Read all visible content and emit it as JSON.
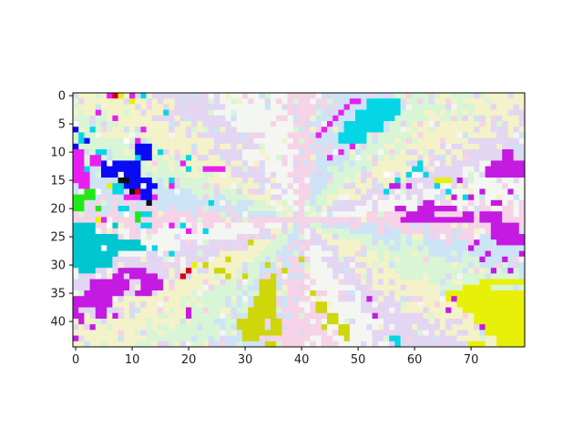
{
  "chart_data": {
    "type": "heatmap",
    "title": "",
    "xlabel": "",
    "ylabel": "",
    "grid": false,
    "legend": "none",
    "colorbar": false,
    "n_cols": 80,
    "n_rows": 45,
    "xlim": [
      -0.5,
      79.5
    ],
    "ylim": [
      44.5,
      -0.5
    ],
    "x_ticks": [
      0,
      10,
      20,
      30,
      40,
      50,
      60,
      70
    ],
    "y_ticks": [
      0,
      5,
      10,
      15,
      20,
      25,
      30,
      35,
      40
    ],
    "background_pattern": "pale pastel rays radiating from center near column 40, row 22",
    "palette": {
      "pastel_pink": "#f6d3e6",
      "pastel_blue": "#cde3f6",
      "pastel_green": "#d8f5d6",
      "pastel_yellow": "#f3f2c8",
      "pastel_lilac": "#e2d6f2",
      "pastel_white": "#f4f6f2",
      "magenta": "#e81ff0",
      "purple": "#c41ae2",
      "cyan": "#05d6e6",
      "teal": "#00c7cf",
      "blue": "#0a0af5",
      "yellow": "#e8f007",
      "olive_yellow": "#cfd60a",
      "green": "#22e81a",
      "red": "#d4001a",
      "black": "#101010",
      "white": "#ffffff"
    },
    "regions": [
      {
        "name": "top-center cyan patch",
        "color": "cyan",
        "rects": [
          [
            52,
            1,
            6,
            3
          ],
          [
            50,
            3,
            7,
            2
          ],
          [
            48,
            5,
            7,
            2
          ],
          [
            47,
            7,
            5,
            2
          ],
          [
            55,
            1,
            3,
            1
          ]
        ]
      },
      {
        "name": "top-center magenta edge",
        "color": "magenta",
        "rects": [
          [
            49,
            1,
            2,
            1
          ],
          [
            48,
            2,
            1,
            1
          ],
          [
            47,
            3,
            1,
            1
          ],
          [
            46,
            4,
            1,
            1
          ],
          [
            45,
            5,
            1,
            1
          ],
          [
            44,
            6,
            1,
            1
          ],
          [
            43,
            7,
            1,
            1
          ],
          [
            49,
            9,
            1,
            1
          ],
          [
            47,
            10,
            1,
            1
          ],
          [
            45,
            11,
            1,
            1
          ]
        ]
      },
      {
        "name": "top-left blue block",
        "color": "blue",
        "rects": [
          [
            5,
            12,
            7,
            3
          ],
          [
            9,
            15,
            5,
            2
          ],
          [
            11,
            9,
            3,
            3
          ],
          [
            0,
            5,
            1,
            2
          ],
          [
            0,
            9,
            1,
            1
          ],
          [
            2,
            8,
            1,
            1
          ],
          [
            12,
            17,
            2,
            2
          ],
          [
            14,
            16,
            1,
            1
          ]
        ]
      },
      {
        "name": "top-left black pixels",
        "color": "black",
        "rects": [
          [
            8,
            15,
            2,
            1
          ],
          [
            10,
            17,
            1,
            1
          ],
          [
            13,
            19,
            1,
            1
          ]
        ]
      },
      {
        "name": "top-left magenta",
        "color": "magenta",
        "rects": [
          [
            0,
            10,
            2,
            6
          ],
          [
            1,
            14,
            2,
            3
          ],
          [
            3,
            11,
            2,
            2
          ],
          [
            6,
            0,
            1,
            1
          ],
          [
            10,
            0,
            1,
            1
          ],
          [
            4,
            3,
            1,
            1
          ],
          [
            7,
            4,
            1,
            1
          ],
          [
            12,
            6,
            1,
            1
          ],
          [
            11,
            8,
            1,
            1
          ],
          [
            19,
            12,
            1,
            1
          ],
          [
            23,
            13,
            4,
            1
          ],
          [
            9,
            18,
            3,
            1
          ],
          [
            14,
            18,
            1,
            1
          ],
          [
            5,
            22,
            1,
            1
          ],
          [
            17,
            23,
            1,
            1
          ],
          [
            20,
            24,
            1,
            1
          ],
          [
            3,
            26,
            2,
            1
          ],
          [
            17,
            16,
            1,
            1
          ]
        ]
      },
      {
        "name": "top-left cyan",
        "color": "cyan",
        "rects": [
          [
            1,
            7,
            1,
            2
          ],
          [
            3,
            6,
            1,
            1
          ],
          [
            4,
            10,
            2,
            1
          ],
          [
            2,
            13,
            1,
            1
          ],
          [
            7,
            16,
            2,
            2
          ],
          [
            8,
            20,
            2,
            1
          ],
          [
            12,
            21,
            2,
            1
          ],
          [
            12,
            23,
            2,
            1
          ],
          [
            17,
            15,
            1,
            1
          ],
          [
            20,
            13,
            1,
            1
          ],
          [
            24,
            19,
            1,
            1
          ],
          [
            19,
            23,
            1,
            1
          ],
          [
            23,
            24,
            1,
            1
          ],
          [
            17,
            28,
            1,
            1
          ],
          [
            14,
            27,
            1,
            1
          ],
          [
            10,
            26,
            1,
            1
          ],
          [
            12,
            0,
            1,
            1
          ],
          [
            16,
            3,
            1,
            1
          ],
          [
            15,
            10,
            1,
            1
          ],
          [
            20,
            11,
            1,
            1
          ],
          [
            11,
            11,
            1,
            1
          ]
        ]
      },
      {
        "name": "left green",
        "color": "green",
        "rects": [
          [
            0,
            18,
            2,
            3
          ],
          [
            2,
            17,
            2,
            2
          ],
          [
            4,
            20,
            1,
            1
          ],
          [
            11,
            21,
            1,
            2
          ]
        ]
      },
      {
        "name": "left red / yellow specks",
        "color": "red",
        "rects": [
          [
            7,
            0,
            1,
            1
          ],
          [
            11,
            17,
            1,
            1
          ],
          [
            19,
            32,
            1,
            1
          ],
          [
            20,
            31,
            1,
            1
          ]
        ]
      },
      {
        "name": "left yellow specks",
        "color": "yellow",
        "rects": [
          [
            8,
            0,
            1,
            1
          ],
          [
            10,
            1,
            1,
            1
          ],
          [
            6,
            16,
            1,
            1
          ],
          [
            4,
            22,
            1,
            1
          ],
          [
            21,
            30,
            1,
            1
          ]
        ]
      },
      {
        "name": "left teal slab",
        "color": "teal",
        "rects": [
          [
            0,
            23,
            4,
            6
          ],
          [
            4,
            25,
            4,
            4
          ],
          [
            0,
            29,
            7,
            2
          ],
          [
            1,
            31,
            3,
            1
          ],
          [
            8,
            26,
            4,
            2
          ],
          [
            11,
            27,
            2,
            1
          ],
          [
            6,
            23,
            2,
            1
          ]
        ]
      },
      {
        "name": "bottom-left purple",
        "color": "purple",
        "rects": [
          [
            8,
            31,
            5,
            1
          ],
          [
            7,
            32,
            2,
            2
          ],
          [
            10,
            32,
            5,
            1
          ],
          [
            3,
            33,
            7,
            2
          ],
          [
            2,
            35,
            7,
            1
          ],
          [
            1,
            36,
            6,
            2
          ],
          [
            4,
            38,
            2,
            2
          ],
          [
            12,
            33,
            4,
            2
          ],
          [
            11,
            35,
            3,
            1
          ],
          [
            0,
            36,
            1,
            3
          ],
          [
            0,
            39,
            2,
            1
          ],
          [
            1,
            40,
            1,
            1
          ],
          [
            3,
            41,
            1,
            1
          ],
          [
            0,
            43,
            1,
            1
          ],
          [
            8,
            34,
            1,
            1
          ],
          [
            15,
            33,
            1,
            1
          ],
          [
            20,
            38,
            1,
            1
          ],
          [
            7,
            39,
            1,
            1
          ]
        ]
      },
      {
        "name": "bottom yellow cluster",
        "color": "olive_yellow",
        "rects": [
          [
            33,
            33,
            3,
            7
          ],
          [
            32,
            36,
            2,
            3
          ],
          [
            31,
            38,
            3,
            4
          ],
          [
            29,
            40,
            3,
            2
          ],
          [
            30,
            42,
            3,
            2
          ],
          [
            33,
            42,
            4,
            1
          ],
          [
            34,
            44,
            2,
            1
          ],
          [
            35,
            40,
            2,
            2
          ],
          [
            25,
            31,
            2,
            1
          ],
          [
            27,
            29,
            1,
            1
          ],
          [
            23,
            30,
            1,
            1
          ],
          [
            27,
            32,
            1,
            1
          ],
          [
            30,
            32,
            1,
            1
          ],
          [
            34,
            30,
            1,
            1
          ],
          [
            35,
            32,
            1,
            1
          ],
          [
            31,
            26,
            1,
            1
          ],
          [
            37,
            31,
            1,
            1
          ],
          [
            43,
            37,
            2,
            2
          ],
          [
            45,
            39,
            2,
            2
          ],
          [
            47,
            41,
            2,
            2
          ],
          [
            48,
            43,
            1,
            1
          ],
          [
            42,
            35,
            1,
            1
          ],
          [
            40,
            29,
            1,
            1
          ],
          [
            44,
            41,
            1,
            1
          ]
        ]
      },
      {
        "name": "right purple band",
        "color": "purple",
        "rects": [
          [
            74,
            12,
            6,
            3
          ],
          [
            73,
            13,
            2,
            2
          ],
          [
            76,
            10,
            2,
            2
          ],
          [
            59,
            21,
            5,
            2
          ],
          [
            61,
            20,
            5,
            1
          ],
          [
            63,
            22,
            6,
            1
          ],
          [
            66,
            20,
            2,
            1
          ],
          [
            69,
            21,
            2,
            2
          ],
          [
            72,
            21,
            4,
            2
          ],
          [
            74,
            23,
            5,
            3
          ],
          [
            75,
            25,
            5,
            2
          ],
          [
            62,
            19,
            2,
            1
          ],
          [
            57,
            20,
            2,
            1
          ],
          [
            58,
            22,
            1,
            1
          ],
          [
            67,
            18,
            1,
            1
          ],
          [
            70,
            18,
            1,
            1
          ],
          [
            72,
            17,
            1,
            1
          ],
          [
            68,
            15,
            1,
            1
          ],
          [
            59,
            16,
            1,
            1
          ],
          [
            56,
            16,
            2,
            1
          ],
          [
            74,
            19,
            2,
            1
          ],
          [
            77,
            17,
            1,
            1
          ],
          [
            75,
            21,
            1,
            1
          ],
          [
            71,
            26,
            1,
            1
          ],
          [
            72,
            29,
            1,
            1
          ],
          [
            76,
            29,
            1,
            1
          ],
          [
            77,
            31,
            1,
            1
          ],
          [
            79,
            28,
            1,
            1
          ],
          [
            74,
            31,
            1,
            1
          ],
          [
            70,
            27,
            1,
            1
          ],
          [
            73,
            28,
            1,
            1
          ]
        ]
      },
      {
        "name": "right cyan specks",
        "color": "cyan",
        "rects": [
          [
            60,
            13,
            2,
            1
          ],
          [
            59,
            14,
            1,
            1
          ],
          [
            62,
            14,
            1,
            1
          ],
          [
            61,
            12,
            1,
            1
          ],
          [
            57,
            15,
            1,
            1
          ],
          [
            66,
            17,
            1,
            1
          ],
          [
            69,
            18,
            1,
            1
          ],
          [
            55,
            17,
            1,
            1
          ],
          [
            64,
            16,
            1,
            1
          ],
          [
            56,
            43,
            2,
            1
          ],
          [
            57,
            44,
            1,
            1
          ]
        ]
      },
      {
        "name": "right yellow",
        "color": "yellow",
        "rects": [
          [
            66,
            35,
            14,
            2
          ],
          [
            69,
            37,
            11,
            2
          ],
          [
            71,
            39,
            9,
            2
          ],
          [
            73,
            41,
            7,
            2
          ],
          [
            75,
            43,
            5,
            2
          ],
          [
            69,
            34,
            5,
            1
          ],
          [
            72,
            33,
            8,
            1
          ],
          [
            68,
            37,
            1,
            1
          ],
          [
            70,
            44,
            3,
            1
          ],
          [
            64,
            15,
            3,
            1
          ]
        ]
      },
      {
        "name": "bottom-right purple specks",
        "color": "purple",
        "rects": [
          [
            72,
            41,
            1,
            1
          ],
          [
            66,
            38,
            1,
            1
          ],
          [
            67,
            36,
            1,
            1
          ],
          [
            53,
            39,
            1,
            1
          ],
          [
            52,
            36,
            1,
            1
          ],
          [
            20,
            39,
            1,
            1
          ]
        ]
      },
      {
        "name": "white specks",
        "color": "white",
        "rects": [
          [
            8,
            14,
            1,
            1
          ],
          [
            6,
            12,
            1,
            1
          ],
          [
            9,
            8,
            1,
            1
          ],
          [
            0,
            5,
            1,
            1
          ],
          [
            12,
            16,
            1,
            1
          ],
          [
            4,
            17,
            1,
            1
          ],
          [
            9,
            21,
            1,
            1
          ],
          [
            5,
            27,
            1,
            1
          ],
          [
            6,
            23,
            1,
            1
          ],
          [
            55,
            14,
            1,
            1
          ],
          [
            60,
            14,
            1,
            1
          ]
        ]
      }
    ]
  }
}
